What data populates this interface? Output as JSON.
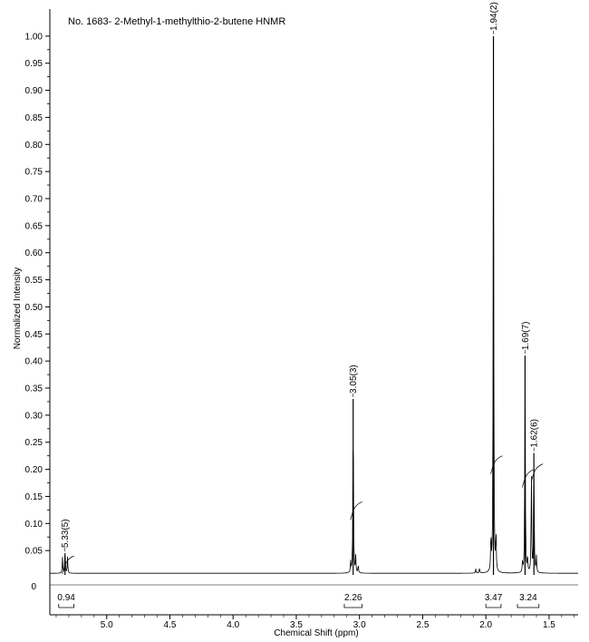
{
  "chart_data": {
    "type": "line",
    "title": "No. 1683- 2-Methyl-1-methylthio-2-butene HNMR",
    "xlabel": "Chemical Shift (ppm)",
    "ylabel": "Normalized Intensity",
    "xlim": [
      5.45,
      1.27
    ],
    "ylim": [
      -0.005,
      1.05
    ],
    "x_reversed": true,
    "x_ticks": [
      5.0,
      4.5,
      4.0,
      3.5,
      3.0,
      2.5,
      2.0,
      1.5
    ],
    "x_tick_labels": [
      "5.0",
      "4.5",
      "4.0",
      "3.5",
      "3.0",
      "2.5",
      "2.0",
      "1.5"
    ],
    "y_ticks": [
      0.05,
      0.1,
      0.15,
      0.2,
      0.25,
      0.3,
      0.35,
      0.4,
      0.45,
      0.5,
      0.55,
      0.6,
      0.65,
      0.7,
      0.75,
      0.8,
      0.85,
      0.9,
      0.95,
      1.0
    ],
    "y_tick_labels": [
      "0.05",
      "0.10",
      "0.15",
      "0.20",
      "0.25",
      "0.30",
      "0.35",
      "0.40",
      "0.45",
      "0.50",
      "0.55",
      "0.60",
      "0.65",
      "0.70",
      "0.75",
      "0.80",
      "0.85",
      "0.90",
      "0.95",
      "1.00"
    ],
    "zero_label": "0",
    "grid": false,
    "baseline": 0.008,
    "peaks": [
      {
        "shift": 5.33,
        "height": 0.045,
        "label": "5.33(5)",
        "integral_height": 0.04
      },
      {
        "shift": 3.05,
        "height": 0.33,
        "label": "3.05(3)",
        "integral_height": 0.14
      },
      {
        "shift": 1.94,
        "height": 1.0,
        "label": "1.94(2)",
        "integral_height": 0.225
      },
      {
        "shift": 1.69,
        "height": 0.41,
        "label": "1.69(7)",
        "integral_height": 0.2
      },
      {
        "shift": 1.62,
        "height": 0.23,
        "label": "1.62(6)",
        "integral_height": 0.21
      }
    ],
    "minor_lines": [
      {
        "shift": 5.35,
        "height": 0.03
      },
      {
        "shift": 5.31,
        "height": 0.03
      },
      {
        "shift": 3.07,
        "height": 0.02
      },
      {
        "shift": 3.03,
        "height": 0.03
      },
      {
        "shift": 3.01,
        "height": 0.015
      },
      {
        "shift": 1.96,
        "height": 0.07
      },
      {
        "shift": 1.92,
        "height": 0.07
      },
      {
        "shift": 1.71,
        "height": 0.02
      },
      {
        "shift": 1.67,
        "height": 0.03
      },
      {
        "shift": 1.64,
        "height": 0.19
      },
      {
        "shift": 1.6,
        "height": 0.03
      },
      {
        "shift": 2.05,
        "height": 0.01
      },
      {
        "shift": 2.08,
        "height": 0.008
      }
    ],
    "integrals": [
      {
        "from": 5.38,
        "to": 5.26,
        "value": "0.94"
      },
      {
        "from": 3.12,
        "to": 2.98,
        "value": "2.26"
      },
      {
        "from": 2.0,
        "to": 1.88,
        "value": "3.47"
      },
      {
        "from": 1.75,
        "to": 1.58,
        "value": "3.24"
      }
    ]
  }
}
